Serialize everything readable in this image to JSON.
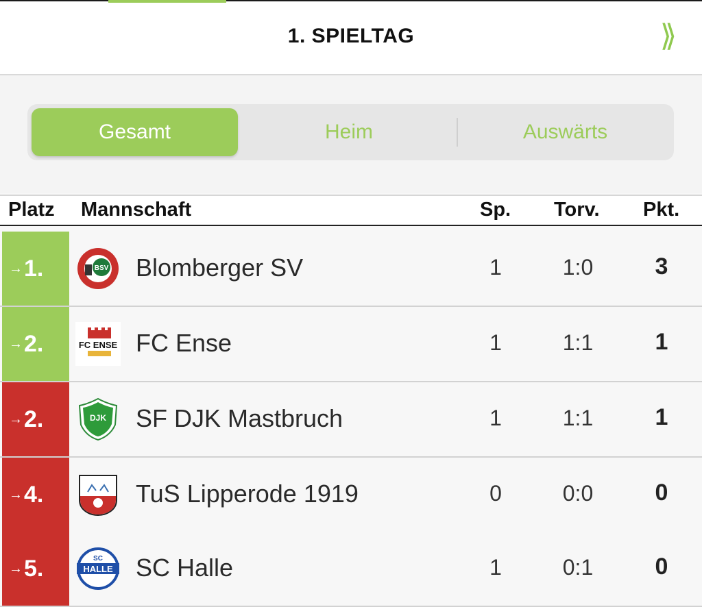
{
  "header": {
    "title": "1. SPIELTAG",
    "next_icon": "double-chevron-right-icon"
  },
  "segments": [
    {
      "label": "Gesamt",
      "active": true
    },
    {
      "label": "Heim",
      "active": false
    },
    {
      "label": "Auswärts",
      "active": false
    }
  ],
  "table": {
    "columns": {
      "platz": "Platz",
      "mannschaft": "Mannschaft",
      "sp": "Sp.",
      "torv": "Torv.",
      "pkt": "Pkt."
    },
    "rows": [
      {
        "rank": "1.",
        "status": "green",
        "team": "Blomberger SV",
        "sp": "1",
        "torv": "1:0",
        "pkt": "3"
      },
      {
        "rank": "2.",
        "status": "green",
        "team": "FC Ense",
        "sp": "1",
        "torv": "1:1",
        "pkt": "1"
      },
      {
        "rank": "2.",
        "status": "red",
        "team": "SF DJK Mastbruch",
        "sp": "1",
        "torv": "1:1",
        "pkt": "1"
      },
      {
        "rank": "4.",
        "status": "red",
        "team": "TuS Lipperode 1919",
        "sp": "0",
        "torv": "0:0",
        "pkt": "0"
      },
      {
        "rank": "5.",
        "status": "red",
        "team": "SC Halle",
        "sp": "1",
        "torv": "0:1",
        "pkt": "0"
      }
    ]
  },
  "colors": {
    "accent": "#9ccc5a",
    "danger": "#c9302c"
  }
}
